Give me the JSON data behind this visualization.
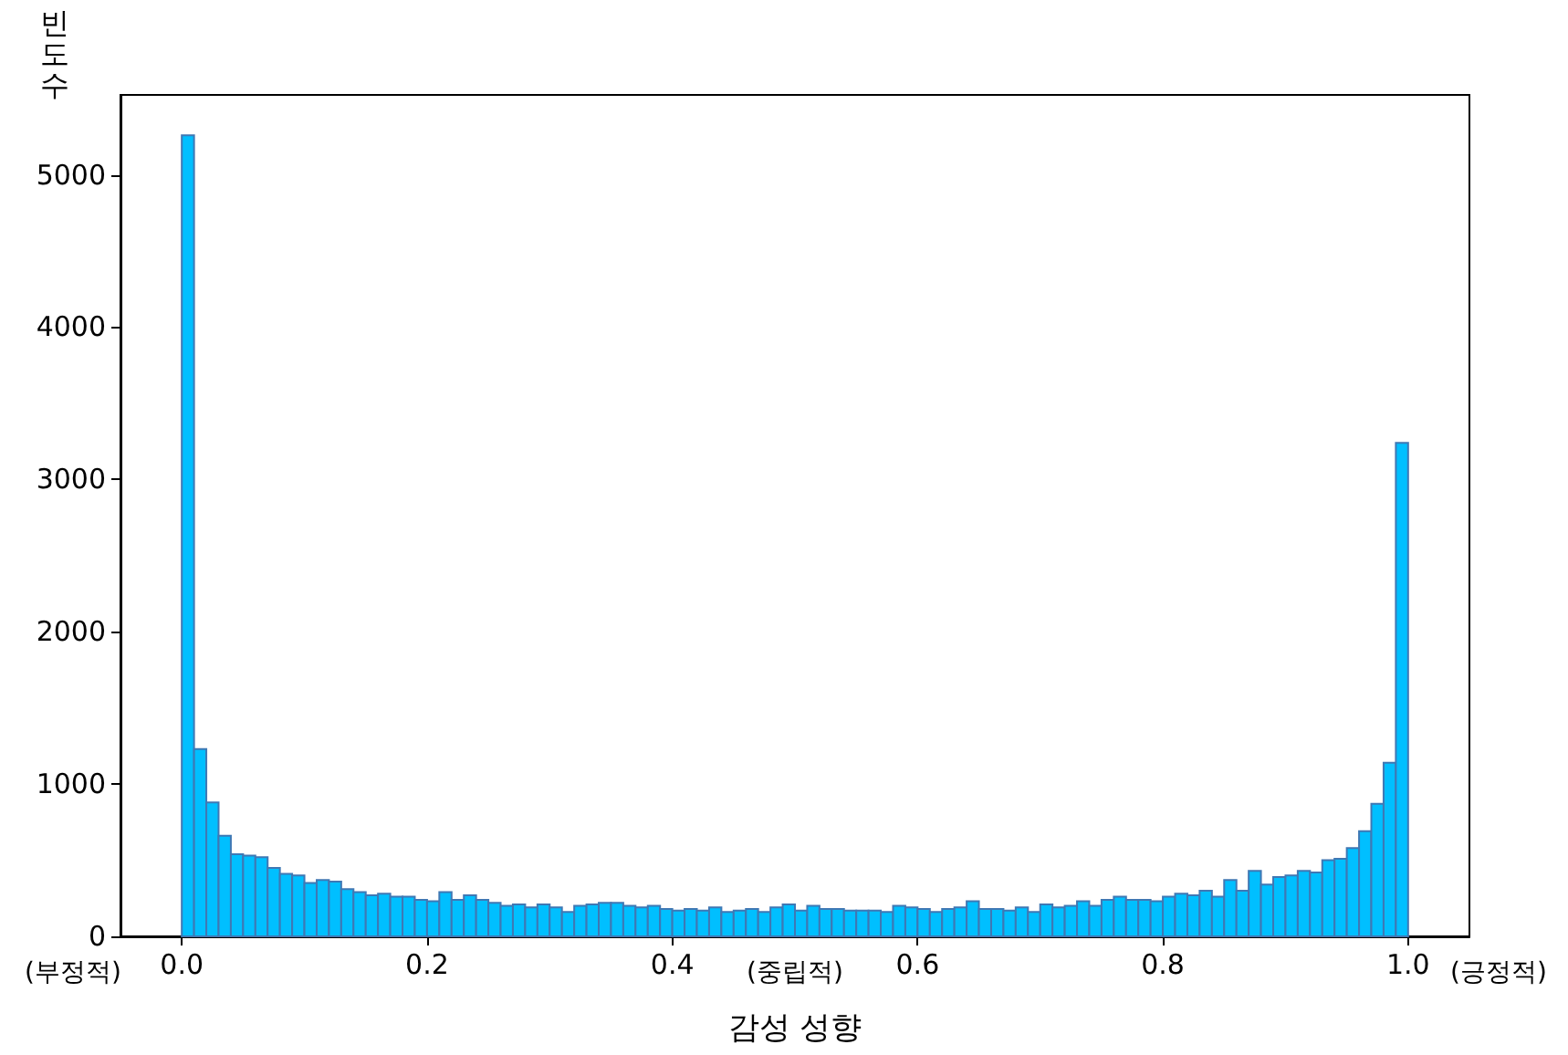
{
  "chart_data": {
    "type": "histogram",
    "xlabel": "감성 성향",
    "ylabel": "빈도수",
    "color": "#00bfff",
    "annotations": [
      "(부정적)",
      "(중립적)",
      "(긍정적)"
    ],
    "bins": [
      0,
      0.01,
      0.02,
      0.03,
      0.04,
      0.05,
      0.06,
      0.07,
      0.08,
      0.09,
      0.1,
      0.11,
      0.12,
      0.13,
      0.14,
      0.15,
      0.16,
      0.17,
      0.18,
      0.19,
      0.2,
      0.21,
      0.22,
      0.23,
      0.24,
      0.25,
      0.26,
      0.27,
      0.28,
      0.29,
      0.3,
      0.31,
      0.32,
      0.33,
      0.34,
      0.35,
      0.36,
      0.37,
      0.38,
      0.39,
      0.4,
      0.41,
      0.42,
      0.43,
      0.44,
      0.45,
      0.46,
      0.47,
      0.48,
      0.49,
      0.5,
      0.51,
      0.52,
      0.53,
      0.54,
      0.55,
      0.56,
      0.57,
      0.58,
      0.59,
      0.6,
      0.61,
      0.62,
      0.63,
      0.64,
      0.65,
      0.66,
      0.67,
      0.68,
      0.69,
      0.7,
      0.71,
      0.72,
      0.73,
      0.74,
      0.75,
      0.76,
      0.77,
      0.78,
      0.79,
      0.8,
      0.81,
      0.82,
      0.83,
      0.84,
      0.85,
      0.86,
      0.87,
      0.88,
      0.89,
      0.9,
      0.91,
      0.92,
      0.93,
      0.94,
      0.95,
      0.96,
      0.97,
      0.98,
      0.99,
      1.0
    ],
    "values": [
      5260,
      1230,
      880,
      660,
      540,
      530,
      520,
      450,
      410,
      400,
      350,
      370,
      360,
      310,
      290,
      270,
      280,
      260,
      260,
      240,
      230,
      290,
      240,
      270,
      240,
      220,
      200,
      210,
      190,
      210,
      190,
      160,
      200,
      210,
      220,
      220,
      200,
      190,
      200,
      180,
      170,
      180,
      170,
      190,
      160,
      170,
      180,
      160,
      190,
      210,
      170,
      200,
      180,
      180,
      170,
      170,
      170,
      160,
      200,
      190,
      180,
      160,
      180,
      190,
      230,
      180,
      180,
      170,
      190,
      160,
      210,
      190,
      200,
      230,
      200,
      240,
      260,
      240,
      240,
      230,
      260,
      280,
      270,
      300,
      260,
      370,
      300,
      430,
      340,
      390,
      400,
      430,
      420,
      500,
      510,
      580,
      690,
      870,
      1140,
      3240
    ],
    "xlim": [
      -0.05,
      1.05
    ],
    "ylim": [
      0,
      5525
    ],
    "xticks": [
      {
        "value": 0,
        "label": "0.0"
      },
      0.2,
      0.4,
      0.6,
      0.8,
      {
        "value": 1,
        "label": "1.0"
      }
    ],
    "yticks": [
      0,
      1000,
      2000,
      3000,
      4000,
      5000
    ]
  }
}
